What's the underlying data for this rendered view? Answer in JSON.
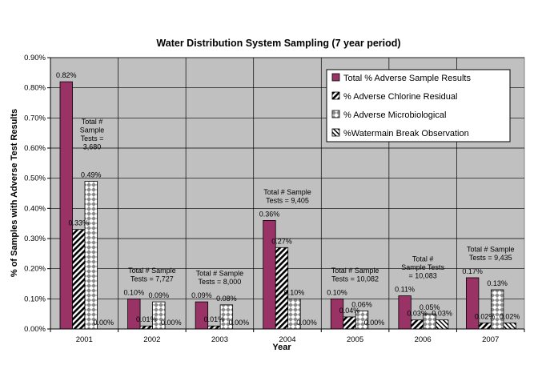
{
  "chart_data": {
    "type": "bar",
    "title": "Water Distribution System Sampling (7 year period)",
    "xlabel": "Year",
    "ylabel": "% of Samples with Adverse Test Results",
    "ylim": [
      0,
      0.9
    ],
    "yticks": [
      "0.00%",
      "0.10%",
      "0.20%",
      "0.30%",
      "0.40%",
      "0.50%",
      "0.60%",
      "0.70%",
      "0.80%",
      "0.90%"
    ],
    "grid": true,
    "legend_position": "top-right",
    "categories": [
      "2001",
      "2002",
      "2003",
      "2004",
      "2005",
      "2006",
      "2007"
    ],
    "series": [
      {
        "name": "Total % Adverse Sample Results",
        "color": "#993366",
        "pattern": "solid",
        "values": [
          0.82,
          0.1,
          0.09,
          0.36,
          0.1,
          0.11,
          0.17
        ],
        "labels": [
          "0.82%",
          "0.10%",
          "0.09%",
          "0.36%",
          "0.10%",
          "0.11%",
          "0.17%"
        ]
      },
      {
        "name": "% Adverse Chlorine Residual",
        "color": "#000000",
        "pattern": "diagonal",
        "values": [
          0.33,
          0.01,
          0.01,
          0.27,
          0.04,
          0.03,
          0.02
        ],
        "labels": [
          "0.33%",
          "0.01%",
          "0.01%",
          "0.27%",
          "0.04%",
          "0.03%",
          "0.02%"
        ]
      },
      {
        "name": "% Adverse Microbiological",
        "color": "#808080",
        "pattern": "diamond",
        "values": [
          0.49,
          0.09,
          0.08,
          0.1,
          0.06,
          0.05,
          0.13
        ],
        "labels": [
          "0.49%",
          "0.09%",
          "0.08%",
          "0.10%",
          "0.06%",
          "0.05%",
          "0.13%"
        ]
      },
      {
        "name": "%Watermain Break Observation",
        "color": "#000000",
        "pattern": "hatch",
        "values": [
          0.0,
          0.0,
          0.0,
          0.0,
          0.0,
          0.03,
          0.02
        ],
        "labels": [
          "0.00%",
          "0.00%",
          "0.00%",
          "0.00%",
          "0.00%",
          "0.03%",
          "0.02%"
        ]
      }
    ],
    "annotations": [
      [
        "Total #",
        "Sample",
        "Tests =",
        "3,680"
      ],
      [
        "Total #  Sample",
        "Tests = 7,727"
      ],
      [
        "Total #  Sample",
        "Tests = 8,000"
      ],
      [
        "Total #  Sample",
        "Tests = 9,405"
      ],
      [
        "Total # Sample",
        "Tests =  10,082"
      ],
      [
        "Total #",
        "Sample Tests",
        "= 10,083"
      ],
      [
        "Total # Sample",
        "Tests = 9,435"
      ]
    ]
  }
}
